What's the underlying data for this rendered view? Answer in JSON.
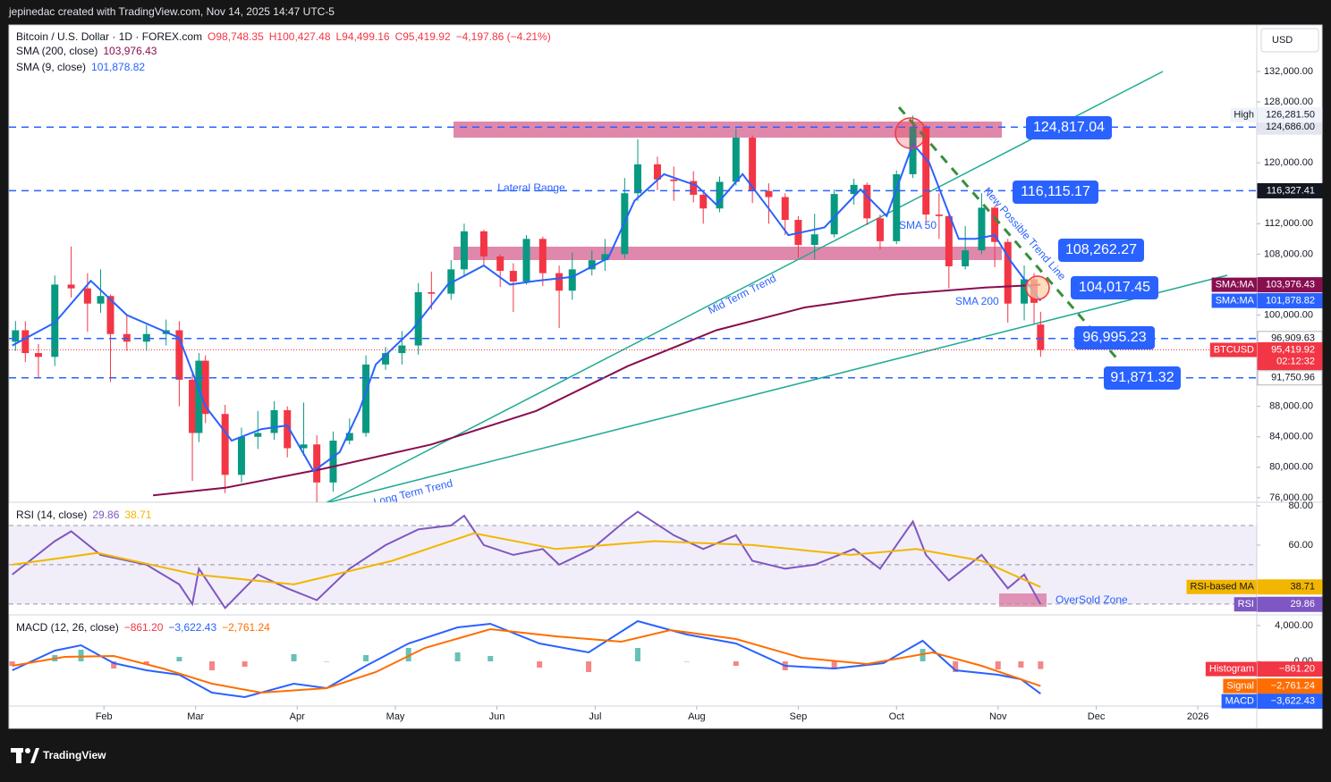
{
  "header": {
    "attribution": "jepinedac created with TradingView.com, Nov 14, 2025 14:47 UTC-5"
  },
  "footer": {
    "brand": "TradingView"
  },
  "chart_data": [
    {
      "type": "candlestick",
      "title": "Bitcoin / U.S. Dollar · 1D · FOREX.com",
      "ohlc_labels": {
        "open": "O98,748.35",
        "high": "H100,427.48",
        "low": "L94,499.16",
        "close": "C95,419.92",
        "change": "−4,197.86 (−4.21%)"
      },
      "currency": "USD",
      "up_color": "#089981",
      "down_color": "#f23645",
      "grid": false,
      "x": [
        5,
        8,
        12,
        17,
        22,
        27,
        31,
        34,
        39,
        45,
        51,
        55,
        59,
        61,
        63,
        69,
        74,
        79,
        84,
        88,
        93,
        97,
        102,
        107,
        112,
        118,
        123,
        128,
        132,
        138,
        142,
        148,
        153,
        157,
        161,
        166,
        171,
        175,
        181,
        185,
        191,
        195,
        201,
        206,
        212,
        215,
        220,
        225,
        230,
        235,
        240,
        244,
        249,
        255,
        261,
        265,
        269,
        274,
        279,
        283,
        287,
        290,
        295,
        300,
        304,
        308,
        313,
        316,
        318
      ],
      "open": [
        96500,
        98000,
        95000,
        94500,
        104000,
        103500,
        101500,
        102500,
        97500,
        96500,
        97500,
        98000,
        91500,
        84500,
        94000,
        87000,
        79000,
        84000,
        84500,
        87500,
        82500,
        83000,
        78000,
        83500,
        84500,
        93500,
        95000,
        96000,
        103000,
        102800,
        106000,
        111000,
        107700,
        105800,
        104400,
        110000,
        105500,
        103200,
        106000,
        107200,
        108000,
        116000,
        119800,
        117800,
        117600,
        115800,
        114000,
        117500,
        123300,
        116300,
        115500,
        112500,
        109200,
        110600,
        115900,
        117100,
        112700,
        109700,
        118500,
        124700,
        113200,
        113000,
        106400,
        108500,
        114100,
        109600,
        101500,
        104700,
        98748.35
      ],
      "high": [
        99200,
        99200,
        96200,
        105200,
        109000,
        105500,
        106000,
        102700,
        100100,
        98700,
        99400,
        99200,
        92700,
        95000,
        94700,
        88200,
        85200,
        87400,
        88700,
        88000,
        88500,
        84200,
        84700,
        86400,
        94700,
        95800,
        97900,
        104200,
        105700,
        107200,
        112000,
        111200,
        108000,
        106800,
        110500,
        110300,
        106500,
        108200,
        108500,
        110000,
        118000,
        123100,
        120800,
        119500,
        118900,
        116000,
        118200,
        124500,
        123600,
        117300,
        116000,
        113000,
        113300,
        116500,
        117900,
        117400,
        113200,
        119000,
        126200,
        125000,
        116000,
        113500,
        111700,
        116000,
        114400,
        110000,
        106500,
        105500,
        100427.48
      ],
      "low": [
        95300,
        93800,
        91800,
        93300,
        102300,
        97800,
        100300,
        91200,
        95300,
        95300,
        96000,
        88000,
        78200,
        83300,
        85800,
        76600,
        78000,
        82400,
        83600,
        81300,
        81500,
        74500,
        76800,
        83000,
        84000,
        92800,
        93500,
        94800,
        100700,
        102000,
        105000,
        106500,
        103700,
        100400,
        104000,
        103800,
        98300,
        102000,
        105200,
        105800,
        107400,
        115000,
        116400,
        115000,
        114800,
        112000,
        113500,
        117000,
        114700,
        112000,
        110500,
        107500,
        107300,
        110200,
        114500,
        111800,
        108600,
        109300,
        118000,
        112000,
        110000,
        103500,
        106000,
        108000,
        106300,
        99000,
        99300,
        98900,
        94499.16
      ],
      "close": [
        98000,
        95000,
        94500,
        104000,
        103500,
        101500,
        102500,
        97500,
        96500,
        97500,
        98000,
        91500,
        84500,
        94000,
        87000,
        79000,
        84000,
        84500,
        87500,
        82500,
        83000,
        78000,
        83500,
        84500,
        93500,
        95000,
        96000,
        103000,
        102800,
        106000,
        111000,
        107700,
        105800,
        104400,
        110000,
        105500,
        103200,
        106000,
        107200,
        108000,
        116000,
        119800,
        117800,
        117600,
        115800,
        114000,
        117500,
        123300,
        116300,
        115500,
        112500,
        109200,
        110600,
        115900,
        117100,
        112700,
        109700,
        118500,
        124700,
        113200,
        113000,
        106400,
        108500,
        114100,
        109600,
        101500,
        104700,
        101600,
        95419.92
      ],
      "xlim": [
        3,
        384
      ],
      "xticks": [
        {
          "value": 32,
          "label": "Feb"
        },
        {
          "value": 60,
          "label": "Mar"
        },
        {
          "value": 91,
          "label": "Apr"
        },
        {
          "value": 121,
          "label": "May"
        },
        {
          "value": 152,
          "label": "Jun"
        },
        {
          "value": 182,
          "label": "Jul"
        },
        {
          "value": 213,
          "label": "Aug"
        },
        {
          "value": 244,
          "label": "Sep"
        },
        {
          "value": 274,
          "label": "Oct"
        },
        {
          "value": 305,
          "label": "Nov"
        },
        {
          "value": 335,
          "label": "Dec"
        },
        {
          "value": 366,
          "label": "2026"
        }
      ],
      "ylim": [
        75400,
        138100
      ],
      "yticks": [
        {
          "value": 132000,
          "label": "132,000.00"
        },
        {
          "value": 128000,
          "label": "128,000.00"
        },
        {
          "value": 120000,
          "label": "120,000.00"
        },
        {
          "value": 112000,
          "label": "112,000.00"
        },
        {
          "value": 108000,
          "label": "108,000.00"
        },
        {
          "value": 100000,
          "label": "100,000.00"
        },
        {
          "value": 88000,
          "label": "88,000.00"
        },
        {
          "value": 84000,
          "label": "84,000.00"
        },
        {
          "value": 80000,
          "label": "80,000.00"
        },
        {
          "value": 76000,
          "label": "76,000.00"
        }
      ],
      "series": [
        {
          "name": "SMA (200, close)",
          "color": "#880e4f",
          "tag": "SMA:MA",
          "value_label": "103,976.43",
          "x": [
            47,
            69,
            99,
            132,
            164,
            192,
            219,
            246,
            274,
            301,
            318
          ],
          "values": [
            76300,
            77300,
            79800,
            83000,
            87400,
            93300,
            98000,
            101000,
            102700,
            103600,
            103976.43
          ]
        },
        {
          "name": "SMA (9, close)",
          "color": "#2962ff",
          "tag": "SMA:MA",
          "value_label": "101,878.82",
          "x": [
            4,
            17,
            28,
            39,
            55,
            63,
            71,
            80,
            88,
            96,
            104,
            110,
            115,
            126,
            137,
            148,
            156,
            164,
            175,
            186,
            194,
            203,
            213,
            219,
            227,
            235,
            241,
            252,
            263,
            271,
            279,
            284,
            293,
            298,
            304,
            309,
            318
          ],
          "values": [
            96000,
            99000,
            104500,
            100000,
            97000,
            88000,
            83500,
            85000,
            85500,
            79500,
            82000,
            87500,
            93500,
            98000,
            104000,
            106500,
            104000,
            104500,
            105000,
            107500,
            115000,
            118500,
            117000,
            114500,
            118500,
            114000,
            110500,
            111500,
            116500,
            113000,
            122500,
            120000,
            110000,
            110000,
            110500,
            107000,
            101878.82
          ]
        }
      ],
      "levels": [
        {
          "value": 124686,
          "label": "124,686.00"
        },
        {
          "value": 116327.41,
          "label": "116,327.41"
        },
        {
          "value": 96909.63,
          "label": "96,909.63"
        },
        {
          "value": 91750.96,
          "label": "91,750.96"
        }
      ],
      "high_marker": {
        "name": "High",
        "value": 126281.5,
        "label": "126,281.50"
      },
      "last_price": {
        "symbol": "BTCUSD",
        "value": 95419.92,
        "label": "95,419.92",
        "countdown": "02:12:32"
      },
      "price_notes": [
        "124,817.04",
        "116,115.17",
        "108,262.27",
        "104,017.45",
        "96,995.23",
        "91,871.32"
      ],
      "annotations": {
        "lateral_range": "Lateral Range",
        "mid_term": "Mid Term Trend",
        "long_term": "Long Term Trend",
        "new_trend": "New Possible Trend Line",
        "sma50": "SMA 50",
        "sma200": "SMA 200"
      }
    },
    {
      "type": "line",
      "title": "RSI (14, close)",
      "ylim": [
        24.5,
        81.8
      ],
      "yticks": [
        {
          "value": 80,
          "label": "80.00"
        },
        {
          "value": 60,
          "label": "60.00"
        }
      ],
      "levels": [
        70,
        50,
        30
      ],
      "band": [
        30,
        70
      ],
      "grid": false,
      "annotation": "OverSold Zone",
      "series": [
        {
          "name": "RSI",
          "color": "#7e57c2",
          "value_label": "29.86",
          "x": [
            4,
            17,
            22,
            31,
            45,
            55,
            59,
            61,
            69,
            79,
            88,
            97,
            107,
            118,
            128,
            138,
            142,
            148,
            157,
            166,
            171,
            181,
            191,
            195,
            206,
            215,
            225,
            230,
            240,
            249,
            261,
            269,
            279,
            283,
            290,
            300,
            308,
            313,
            318
          ],
          "values": [
            45,
            62,
            67,
            55,
            50,
            40,
            30,
            48,
            28,
            45,
            38,
            32,
            48,
            60,
            68,
            70,
            75,
            60,
            55,
            58,
            50,
            58,
            72,
            77,
            65,
            58,
            65,
            52,
            48,
            50,
            58,
            48,
            72,
            55,
            42,
            55,
            38,
            45,
            29.86
          ]
        },
        {
          "name": "RSI-based MA",
          "color": "#f2b600",
          "value_label": "38.71",
          "x": [
            4,
            30,
            60,
            90,
            120,
            145,
            170,
            200,
            230,
            260,
            280,
            300,
            318
          ],
          "values": [
            50,
            56,
            45,
            40,
            52,
            66,
            58,
            62,
            60,
            55,
            58,
            52,
            38.71
          ]
        }
      ]
    },
    {
      "type": "line",
      "title": "MACD (12, 26, close)",
      "ylim": [
        -5000,
        5200
      ],
      "yticks": [
        {
          "value": 4000,
          "label": "4,000.00"
        },
        {
          "value": 0,
          "label": "0.00"
        }
      ],
      "grid": false,
      "series": [
        {
          "name": "Histogram",
          "style": "histogram",
          "color": "#f23645",
          "up_color": "#26a69a",
          "down_color": "#ef5350",
          "value_label": "−861.20",
          "x": [
            4,
            17,
            25,
            35,
            45,
            55,
            65,
            75,
            90,
            100,
            112,
            125,
            140,
            150,
            165,
            180,
            195,
            210,
            225,
            240,
            255,
            270,
            282,
            292,
            305,
            312,
            318
          ],
          "values": [
            -500,
            700,
            1300,
            -800,
            -300,
            500,
            -1000,
            -600,
            800,
            0,
            700,
            1500,
            1000,
            600,
            -700,
            -1200,
            1500,
            0,
            -500,
            -1000,
            -900,
            100,
            1400,
            -1200,
            -900,
            -700,
            -861.2
          ]
        },
        {
          "name": "MACD",
          "color": "#2962ff",
          "value_label": "−3,622.43",
          "x": [
            4,
            17,
            25,
            35,
            45,
            55,
            65,
            75,
            90,
            100,
            112,
            125,
            140,
            150,
            165,
            180,
            195,
            210,
            225,
            240,
            255,
            270,
            282,
            292,
            305,
            312,
            318
          ],
          "values": [
            -1000,
            1200,
            1800,
            -200,
            -1000,
            -1500,
            -3500,
            -4000,
            -2500,
            -3000,
            -500,
            2000,
            3800,
            4200,
            2000,
            1000,
            4500,
            3000,
            2000,
            -500,
            -800,
            -200,
            2300,
            -1000,
            -1500,
            -2000,
            -3622.43
          ]
        },
        {
          "name": "Signal",
          "color": "#ff6d00",
          "value_label": "−2,761.24",
          "x": [
            4,
            20,
            35,
            50,
            65,
            80,
            100,
            115,
            130,
            150,
            170,
            190,
            205,
            225,
            245,
            265,
            285,
            300,
            318
          ],
          "values": [
            -500,
            500,
            600,
            -800,
            -2500,
            -3500,
            -3000,
            -1200,
            1500,
            3600,
            2800,
            2200,
            3500,
            2500,
            400,
            -300,
            1000,
            -500,
            -2761.24
          ]
        }
      ]
    }
  ]
}
